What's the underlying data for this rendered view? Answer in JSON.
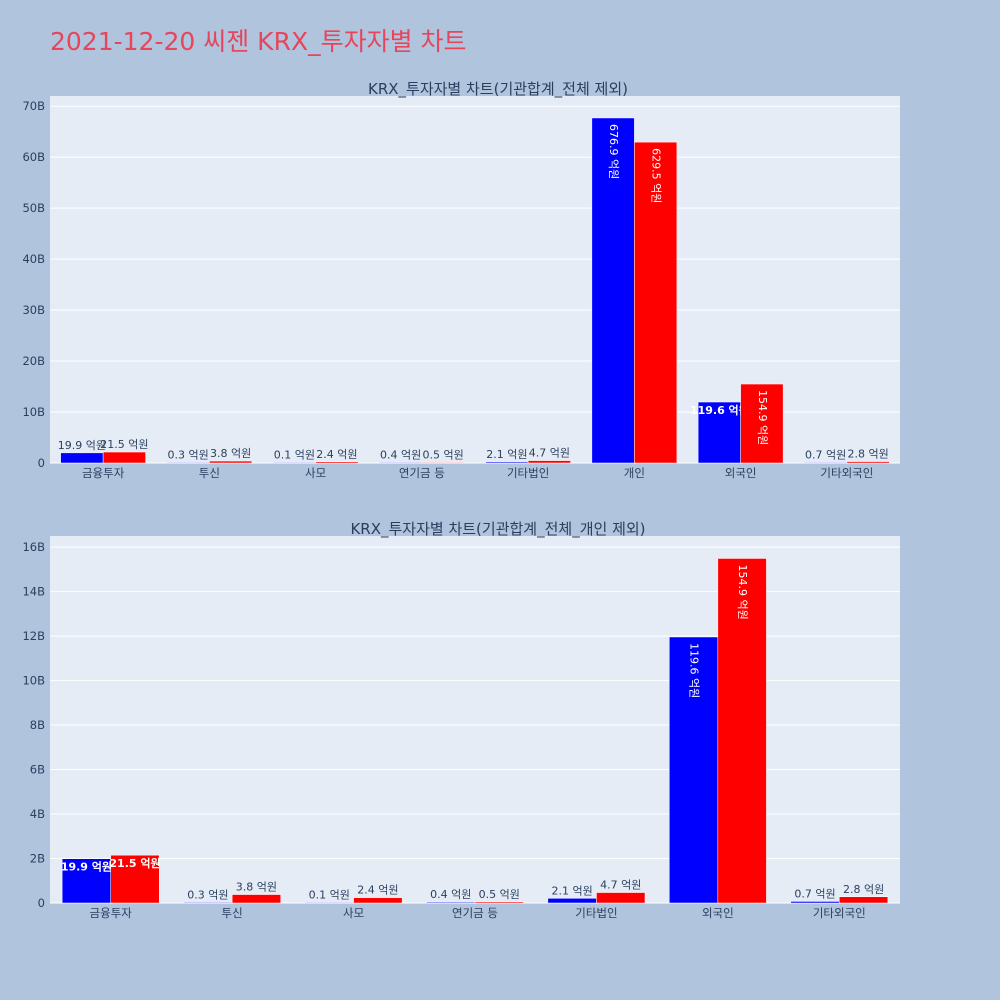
{
  "title": "2021-12-20 씨젠 KRX_투자자별 차트",
  "colors": {
    "buy": "#0000ff",
    "sell": "#ff0000",
    "title": "#e8455a",
    "plot_bg": "#e5ecf6",
    "page_bg": "#b0c4de"
  },
  "chart_data": [
    {
      "type": "bar",
      "title": "KRX_투자자별 차트(기관합계_전체 제외)",
      "categories": [
        "금융투자",
        "투신",
        "사모",
        "연기금 등",
        "기타법인",
        "개인",
        "외국인",
        "기타외국인"
      ],
      "series": [
        {
          "values": [
            1.99,
            0.03,
            0.01,
            0.04,
            0.21,
            67.69,
            11.96,
            0.07
          ],
          "labels": [
            "19.9 억원",
            "0.3 억원",
            "0.1 억원",
            "0.4 억원",
            "2.1 억원",
            "676.9 억원",
            "119.6 억원",
            "0.7 억원"
          ]
        },
        {
          "values": [
            2.15,
            0.38,
            0.24,
            0.05,
            0.47,
            62.95,
            15.49,
            0.28
          ],
          "labels": [
            "21.5 억원",
            "3.8 억원",
            "2.4 억원",
            "0.5 억원",
            "4.7 억원",
            "629.5 억원",
            "154.9 억원",
            "2.8 억원"
          ]
        }
      ],
      "ylim": [
        0,
        72
      ],
      "yticks": [
        "0",
        "10B",
        "20B",
        "30B",
        "40B",
        "50B",
        "60B",
        "70B"
      ],
      "ytick_values": [
        0,
        10,
        20,
        30,
        40,
        50,
        60,
        70
      ],
      "grid": true
    },
    {
      "type": "bar",
      "title": "KRX_투자자별 차트(기관합계_전체_개인 제외)",
      "categories": [
        "금융투자",
        "투신",
        "사모",
        "연기금 등",
        "기타법인",
        "외국인",
        "기타외국인"
      ],
      "series": [
        {
          "values": [
            1.99,
            0.03,
            0.01,
            0.04,
            0.21,
            11.96,
            0.07
          ],
          "labels": [
            "19.9 억원",
            "0.3 억원",
            "0.1 억원",
            "0.4 억원",
            "2.1 억원",
            "119.6 억원",
            "0.7 억원"
          ]
        },
        {
          "values": [
            2.15,
            0.38,
            0.24,
            0.05,
            0.47,
            15.49,
            0.28
          ],
          "labels": [
            "21.5 억원",
            "3.8 억원",
            "2.4 억원",
            "0.5 억원",
            "4.7 억원",
            "154.9 억원",
            "2.8 억원"
          ]
        }
      ],
      "ylim": [
        0,
        16.5
      ],
      "yticks": [
        "0",
        "2B",
        "4B",
        "6B",
        "8B",
        "10B",
        "12B",
        "14B",
        "16B"
      ],
      "ytick_values": [
        0,
        2,
        4,
        6,
        8,
        10,
        12,
        14,
        16
      ],
      "grid": true
    }
  ]
}
